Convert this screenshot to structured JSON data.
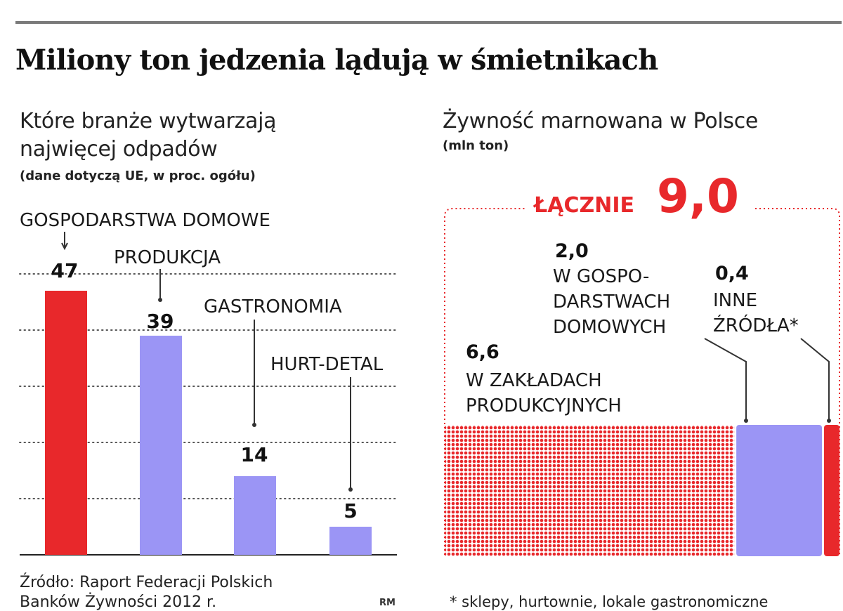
{
  "title": "Miliony ton jedzenia lądują w śmietnikach",
  "left_chart": {
    "subtitle_line1": "Które branże wytwarzają",
    "subtitle_line2": "najwięcej odpadów",
    "note": "(dane dotyczą UE, w proc. ogółu)"
  },
  "right_chart": {
    "subtitle": "Żywność marnowana w Polsce",
    "note": "(mln ton)",
    "total_label": "ŁĄCZNIE",
    "total_value": "9,0"
  },
  "chart_data": [
    {
      "type": "bar",
      "categories": [
        "GOSPODARSTWA  DOMOWE",
        "PRODUKCJA",
        "GASTRONOMIA",
        "HURT-DETAL"
      ],
      "values": [
        47,
        39,
        14,
        5
      ],
      "value_labels": [
        "47",
        "39",
        "14",
        "5"
      ],
      "colors": [
        "#e8282b",
        "#9b95f5",
        "#9b95f5",
        "#9b95f5"
      ],
      "ylim": [
        0,
        50
      ],
      "grid": true
    },
    {
      "type": "bar",
      "orientation": "stacked-horizontal",
      "total": 9.0,
      "segments": [
        {
          "value": 6.6,
          "value_label": "6,6",
          "label_lines": [
            "W ZAKŁADACH",
            "PRODUKCYJNYCH"
          ],
          "color": "#e8282b",
          "pattern": "dotted"
        },
        {
          "value": 2.0,
          "value_label": "2,0",
          "label_lines": [
            "W GOSPO-",
            "DARSTWACH",
            "DOMOWYCH"
          ],
          "color": "#9b95f5"
        },
        {
          "value": 0.4,
          "value_label": "0,4",
          "label_lines": [
            "INNE",
            "ŹRÓDŁA*"
          ],
          "color": "#e8282b"
        }
      ]
    }
  ],
  "footer": {
    "source_line1": "Źródło: Raport Federacji Polskich",
    "source_line2": "Banków Żywności 2012 r.",
    "credit": "RM",
    "footnote": "* sklepy, hurtownie, lokale gastronomiczne"
  }
}
